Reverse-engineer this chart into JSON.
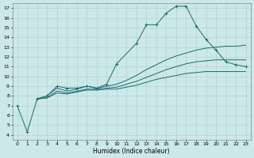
{
  "xlabel": "Humidex (Indice chaleur)",
  "xlim": [
    -0.5,
    23.5
  ],
  "ylim": [
    3.5,
    17.5
  ],
  "xticks": [
    0,
    1,
    2,
    3,
    4,
    5,
    6,
    7,
    8,
    9,
    10,
    11,
    12,
    13,
    14,
    15,
    16,
    17,
    18,
    19,
    20,
    21,
    22,
    23
  ],
  "yticks": [
    4,
    5,
    6,
    7,
    8,
    9,
    10,
    11,
    12,
    13,
    14,
    15,
    16,
    17
  ],
  "bg_color": "#cce8e8",
  "line_color": "#1a6b6b",
  "grid_color": "#aacfcf",
  "lines": [
    {
      "x": [
        0,
        1,
        2,
        3,
        4,
        5,
        6,
        7,
        8,
        9,
        10,
        12,
        13,
        14,
        15,
        16,
        17,
        18,
        19,
        20,
        21,
        22,
        23
      ],
      "y": [
        7.0,
        4.3,
        7.7,
        8.0,
        9.0,
        8.8,
        8.8,
        9.0,
        8.8,
        9.2,
        11.3,
        13.4,
        15.3,
        15.3,
        16.5,
        17.2,
        17.2,
        15.2,
        13.8,
        12.7,
        11.5,
        11.2,
        11.0
      ],
      "marker": true
    },
    {
      "x": [
        2,
        3,
        4,
        5,
        6,
        7,
        8,
        9,
        10,
        11,
        12,
        13,
        14,
        15,
        16,
        17,
        18,
        19,
        20,
        21,
        22,
        23
      ],
      "y": [
        7.7,
        8.0,
        8.8,
        8.5,
        8.7,
        9.0,
        8.8,
        9.0,
        9.2,
        9.6,
        10.1,
        10.7,
        11.2,
        11.7,
        12.1,
        12.4,
        12.7,
        12.9,
        13.0,
        13.1,
        13.1,
        13.2
      ],
      "marker": false
    },
    {
      "x": [
        2,
        3,
        4,
        5,
        6,
        7,
        8,
        9,
        10,
        11,
        12,
        13,
        14,
        15,
        16,
        17,
        18,
        19,
        20,
        21,
        22,
        23
      ],
      "y": [
        7.7,
        7.8,
        8.5,
        8.3,
        8.5,
        8.7,
        8.7,
        8.8,
        8.9,
        9.2,
        9.5,
        9.9,
        10.3,
        10.7,
        11.0,
        11.3,
        11.5,
        11.6,
        11.7,
        11.7,
        11.7,
        11.7
      ],
      "marker": false
    },
    {
      "x": [
        2,
        3,
        4,
        5,
        6,
        7,
        8,
        9,
        10,
        11,
        12,
        13,
        14,
        15,
        16,
        17,
        18,
        19,
        20,
        21,
        22,
        23
      ],
      "y": [
        7.7,
        7.8,
        8.3,
        8.2,
        8.4,
        8.6,
        8.6,
        8.7,
        8.7,
        8.9,
        9.1,
        9.4,
        9.7,
        9.9,
        10.1,
        10.3,
        10.4,
        10.5,
        10.5,
        10.5,
        10.5,
        10.5
      ],
      "marker": false
    }
  ]
}
